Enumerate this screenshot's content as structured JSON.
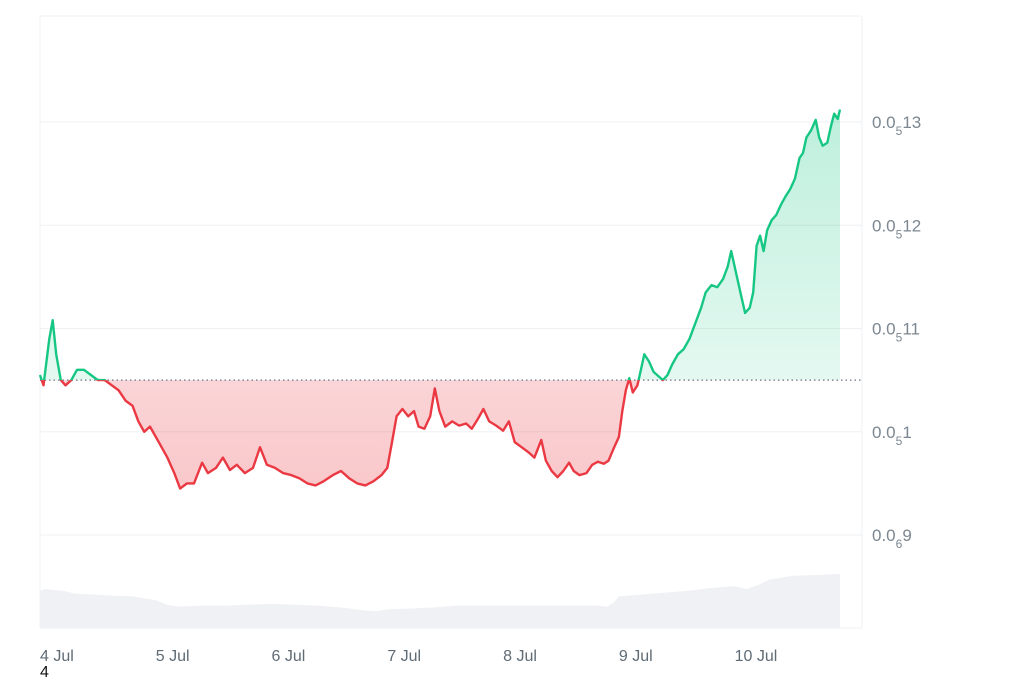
{
  "chart_data": {
    "type": "line",
    "title": "",
    "xlabel": "",
    "ylabel": "",
    "baseline": 1.05e-06,
    "y_ticks": [
      {
        "value": 1.3e-06,
        "prefix": "0.0",
        "sub": "5",
        "digits": "13"
      },
      {
        "value": 1.2e-06,
        "prefix": "0.0",
        "sub": "5",
        "digits": "12"
      },
      {
        "value": 1.1e-06,
        "prefix": "0.0",
        "sub": "5",
        "digits": "11"
      },
      {
        "value": 1e-06,
        "prefix": "0.0",
        "sub": "5",
        "digits": "1"
      },
      {
        "value": 9e-07,
        "prefix": "0.0",
        "sub": "6",
        "digits": "9"
      }
    ],
    "x_ticks": [
      {
        "label": "4 Jul",
        "t": 0
      },
      {
        "label": "5 Jul",
        "t": 1
      },
      {
        "label": "6 Jul",
        "t": 2
      },
      {
        "label": "7 Jul",
        "t": 3
      },
      {
        "label": "8 Jul",
        "t": 4
      },
      {
        "label": "9 Jul",
        "t": 5
      },
      {
        "label": "10 Jul",
        "t": 6
      }
    ],
    "ylim": [
      8.7e-07,
      1.4e-06
    ],
    "xlim": [
      0,
      7.1
    ],
    "price_series": [
      [
        0.0,
        1.055e-06
      ],
      [
        0.03,
        1.045e-06
      ],
      [
        0.08,
        1.09e-06
      ],
      [
        0.11,
        1.108e-06
      ],
      [
        0.14,
        1.075e-06
      ],
      [
        0.18,
        1.05e-06
      ],
      [
        0.22,
        1.045e-06
      ],
      [
        0.27,
        1.05e-06
      ],
      [
        0.32,
        1.06e-06
      ],
      [
        0.38,
        1.06e-06
      ],
      [
        0.44,
        1.055e-06
      ],
      [
        0.5,
        1.05e-06
      ],
      [
        0.56,
        1.05e-06
      ],
      [
        0.62,
        1.045e-06
      ],
      [
        0.68,
        1.04e-06
      ],
      [
        0.74,
        1.03e-06
      ],
      [
        0.8,
        1.025e-06
      ],
      [
        0.85,
        1.01e-06
      ],
      [
        0.9,
        1e-06
      ],
      [
        0.95,
        1.005e-06
      ],
      [
        1.0,
        9.95e-07
      ],
      [
        1.05,
        9.85e-07
      ],
      [
        1.1,
        9.75e-07
      ],
      [
        1.16,
        9.6e-07
      ],
      [
        1.21,
        9.45e-07
      ],
      [
        1.27,
        9.5e-07
      ],
      [
        1.33,
        9.5e-07
      ],
      [
        1.4,
        9.7e-07
      ],
      [
        1.45,
        9.6e-07
      ],
      [
        1.52,
        9.65e-07
      ],
      [
        1.58,
        9.75e-07
      ],
      [
        1.64,
        9.63e-07
      ],
      [
        1.7,
        9.68e-07
      ],
      [
        1.77,
        9.6e-07
      ],
      [
        1.84,
        9.65e-07
      ],
      [
        1.9,
        9.85e-07
      ],
      [
        1.96,
        9.68e-07
      ],
      [
        2.03,
        9.65e-07
      ],
      [
        2.1,
        9.6e-07
      ],
      [
        2.17,
        9.58e-07
      ],
      [
        2.24,
        9.55e-07
      ],
      [
        2.31,
        9.5e-07
      ],
      [
        2.38,
        9.48e-07
      ],
      [
        2.45,
        9.52e-07
      ],
      [
        2.53,
        9.58e-07
      ],
      [
        2.6,
        9.62e-07
      ],
      [
        2.67,
        9.55e-07
      ],
      [
        2.74,
        9.5e-07
      ],
      [
        2.81,
        9.48e-07
      ],
      [
        2.88,
        9.52e-07
      ],
      [
        2.95,
        9.58e-07
      ],
      [
        3.0,
        9.65e-07
      ],
      [
        3.04,
        9.9e-07
      ],
      [
        3.08,
        1.015e-06
      ],
      [
        3.13,
        1.022e-06
      ],
      [
        3.18,
        1.015e-06
      ],
      [
        3.23,
        1.02e-06
      ],
      [
        3.27,
        1.005e-06
      ],
      [
        3.32,
        1.003e-06
      ],
      [
        3.37,
        1.015e-06
      ],
      [
        3.41,
        1.042e-06
      ],
      [
        3.45,
        1.02e-06
      ],
      [
        3.5,
        1.005e-06
      ],
      [
        3.56,
        1.01e-06
      ],
      [
        3.62,
        1.006e-06
      ],
      [
        3.68,
        1.008e-06
      ],
      [
        3.73,
        1.003e-06
      ],
      [
        3.78,
        1.012e-06
      ],
      [
        3.83,
        1.022e-06
      ],
      [
        3.88,
        1.01e-06
      ],
      [
        3.94,
        1.006e-06
      ],
      [
        4.0,
        1.001e-06
      ],
      [
        4.05,
        1.01e-06
      ],
      [
        4.1,
        9.9e-07
      ],
      [
        4.16,
        9.85e-07
      ],
      [
        4.22,
        9.8e-07
      ],
      [
        4.27,
        9.75e-07
      ],
      [
        4.33,
        9.92e-07
      ],
      [
        4.37,
        9.72e-07
      ],
      [
        4.42,
        9.62e-07
      ],
      [
        4.47,
        9.56e-07
      ],
      [
        4.52,
        9.62e-07
      ],
      [
        4.57,
        9.7e-07
      ],
      [
        4.61,
        9.62e-07
      ],
      [
        4.66,
        9.58e-07
      ],
      [
        4.72,
        9.6e-07
      ],
      [
        4.77,
        9.68e-07
      ],
      [
        4.82,
        9.71e-07
      ],
      [
        4.87,
        9.69e-07
      ],
      [
        4.91,
        9.72e-07
      ],
      [
        4.96,
        9.85e-07
      ],
      [
        5.0,
        9.95e-07
      ],
      [
        5.03,
        1.02e-06
      ],
      [
        5.06,
        1.04e-06
      ],
      [
        5.09,
        1.052e-06
      ],
      [
        5.12,
        1.038e-06
      ],
      [
        5.16,
        1.045e-06
      ],
      [
        5.19,
        1.06e-06
      ],
      [
        5.22,
        1.075e-06
      ],
      [
        5.26,
        1.068e-06
      ],
      [
        5.3,
        1.058e-06
      ],
      [
        5.34,
        1.054e-06
      ],
      [
        5.38,
        1.05e-06
      ],
      [
        5.42,
        1.055e-06
      ],
      [
        5.46,
        1.065e-06
      ],
      [
        5.51,
        1.075e-06
      ],
      [
        5.56,
        1.08e-06
      ],
      [
        5.61,
        1.09e-06
      ],
      [
        5.66,
        1.105e-06
      ],
      [
        5.71,
        1.12e-06
      ],
      [
        5.75,
        1.135e-06
      ],
      [
        5.8,
        1.142e-06
      ],
      [
        5.85,
        1.14e-06
      ],
      [
        5.9,
        1.148e-06
      ],
      [
        5.94,
        1.16e-06
      ],
      [
        5.97,
        1.175e-06
      ],
      [
        6.01,
        1.155e-06
      ],
      [
        6.05,
        1.135e-06
      ],
      [
        6.09,
        1.115e-06
      ],
      [
        6.13,
        1.12e-06
      ],
      [
        6.16,
        1.135e-06
      ],
      [
        6.19,
        1.18e-06
      ],
      [
        6.22,
        1.19e-06
      ],
      [
        6.25,
        1.175e-06
      ],
      [
        6.28,
        1.195e-06
      ],
      [
        6.32,
        1.205e-06
      ],
      [
        6.36,
        1.21e-06
      ],
      [
        6.4,
        1.22e-06
      ],
      [
        6.44,
        1.228e-06
      ],
      [
        6.48,
        1.235e-06
      ],
      [
        6.52,
        1.245e-06
      ],
      [
        6.56,
        1.265e-06
      ],
      [
        6.59,
        1.27e-06
      ],
      [
        6.62,
        1.285e-06
      ],
      [
        6.66,
        1.292e-06
      ],
      [
        6.7,
        1.302e-06
      ],
      [
        6.73,
        1.285e-06
      ],
      [
        6.76,
        1.277e-06
      ],
      [
        6.8,
        1.28e-06
      ],
      [
        6.83,
        1.295e-06
      ],
      [
        6.86,
        1.308e-06
      ],
      [
        6.89,
        1.303e-06
      ],
      [
        6.91,
        1.312e-06
      ]
    ],
    "volume_series": [
      [
        0.0,
        0.4
      ],
      [
        0.05,
        0.42
      ],
      [
        0.1,
        0.41
      ],
      [
        0.2,
        0.4
      ],
      [
        0.3,
        0.37
      ],
      [
        0.45,
        0.36
      ],
      [
        0.6,
        0.35
      ],
      [
        0.8,
        0.34
      ],
      [
        1.0,
        0.3
      ],
      [
        1.1,
        0.25
      ],
      [
        1.2,
        0.23
      ],
      [
        1.4,
        0.24
      ],
      [
        1.6,
        0.24
      ],
      [
        1.8,
        0.25
      ],
      [
        2.0,
        0.26
      ],
      [
        2.2,
        0.25
      ],
      [
        2.4,
        0.24
      ],
      [
        2.6,
        0.22
      ],
      [
        2.8,
        0.19
      ],
      [
        2.9,
        0.18
      ],
      [
        3.0,
        0.2
      ],
      [
        3.2,
        0.21
      ],
      [
        3.4,
        0.22
      ],
      [
        3.6,
        0.24
      ],
      [
        3.8,
        0.24
      ],
      [
        4.0,
        0.24
      ],
      [
        4.2,
        0.24
      ],
      [
        4.4,
        0.24
      ],
      [
        4.6,
        0.24
      ],
      [
        4.8,
        0.24
      ],
      [
        4.9,
        0.23
      ],
      [
        4.96,
        0.28
      ],
      [
        5.0,
        0.34
      ],
      [
        5.2,
        0.36
      ],
      [
        5.4,
        0.38
      ],
      [
        5.6,
        0.4
      ],
      [
        5.8,
        0.43
      ],
      [
        6.0,
        0.45
      ],
      [
        6.1,
        0.42
      ],
      [
        6.2,
        0.46
      ],
      [
        6.3,
        0.52
      ],
      [
        6.5,
        0.56
      ],
      [
        6.7,
        0.57
      ],
      [
        6.91,
        0.58
      ]
    ],
    "colors": {
      "up": "#16c784",
      "down": "#ea3943",
      "grid": "#eef0f3",
      "baseline": "#6b7280",
      "volume": "#eff1f4"
    }
  },
  "footer_note": "4"
}
